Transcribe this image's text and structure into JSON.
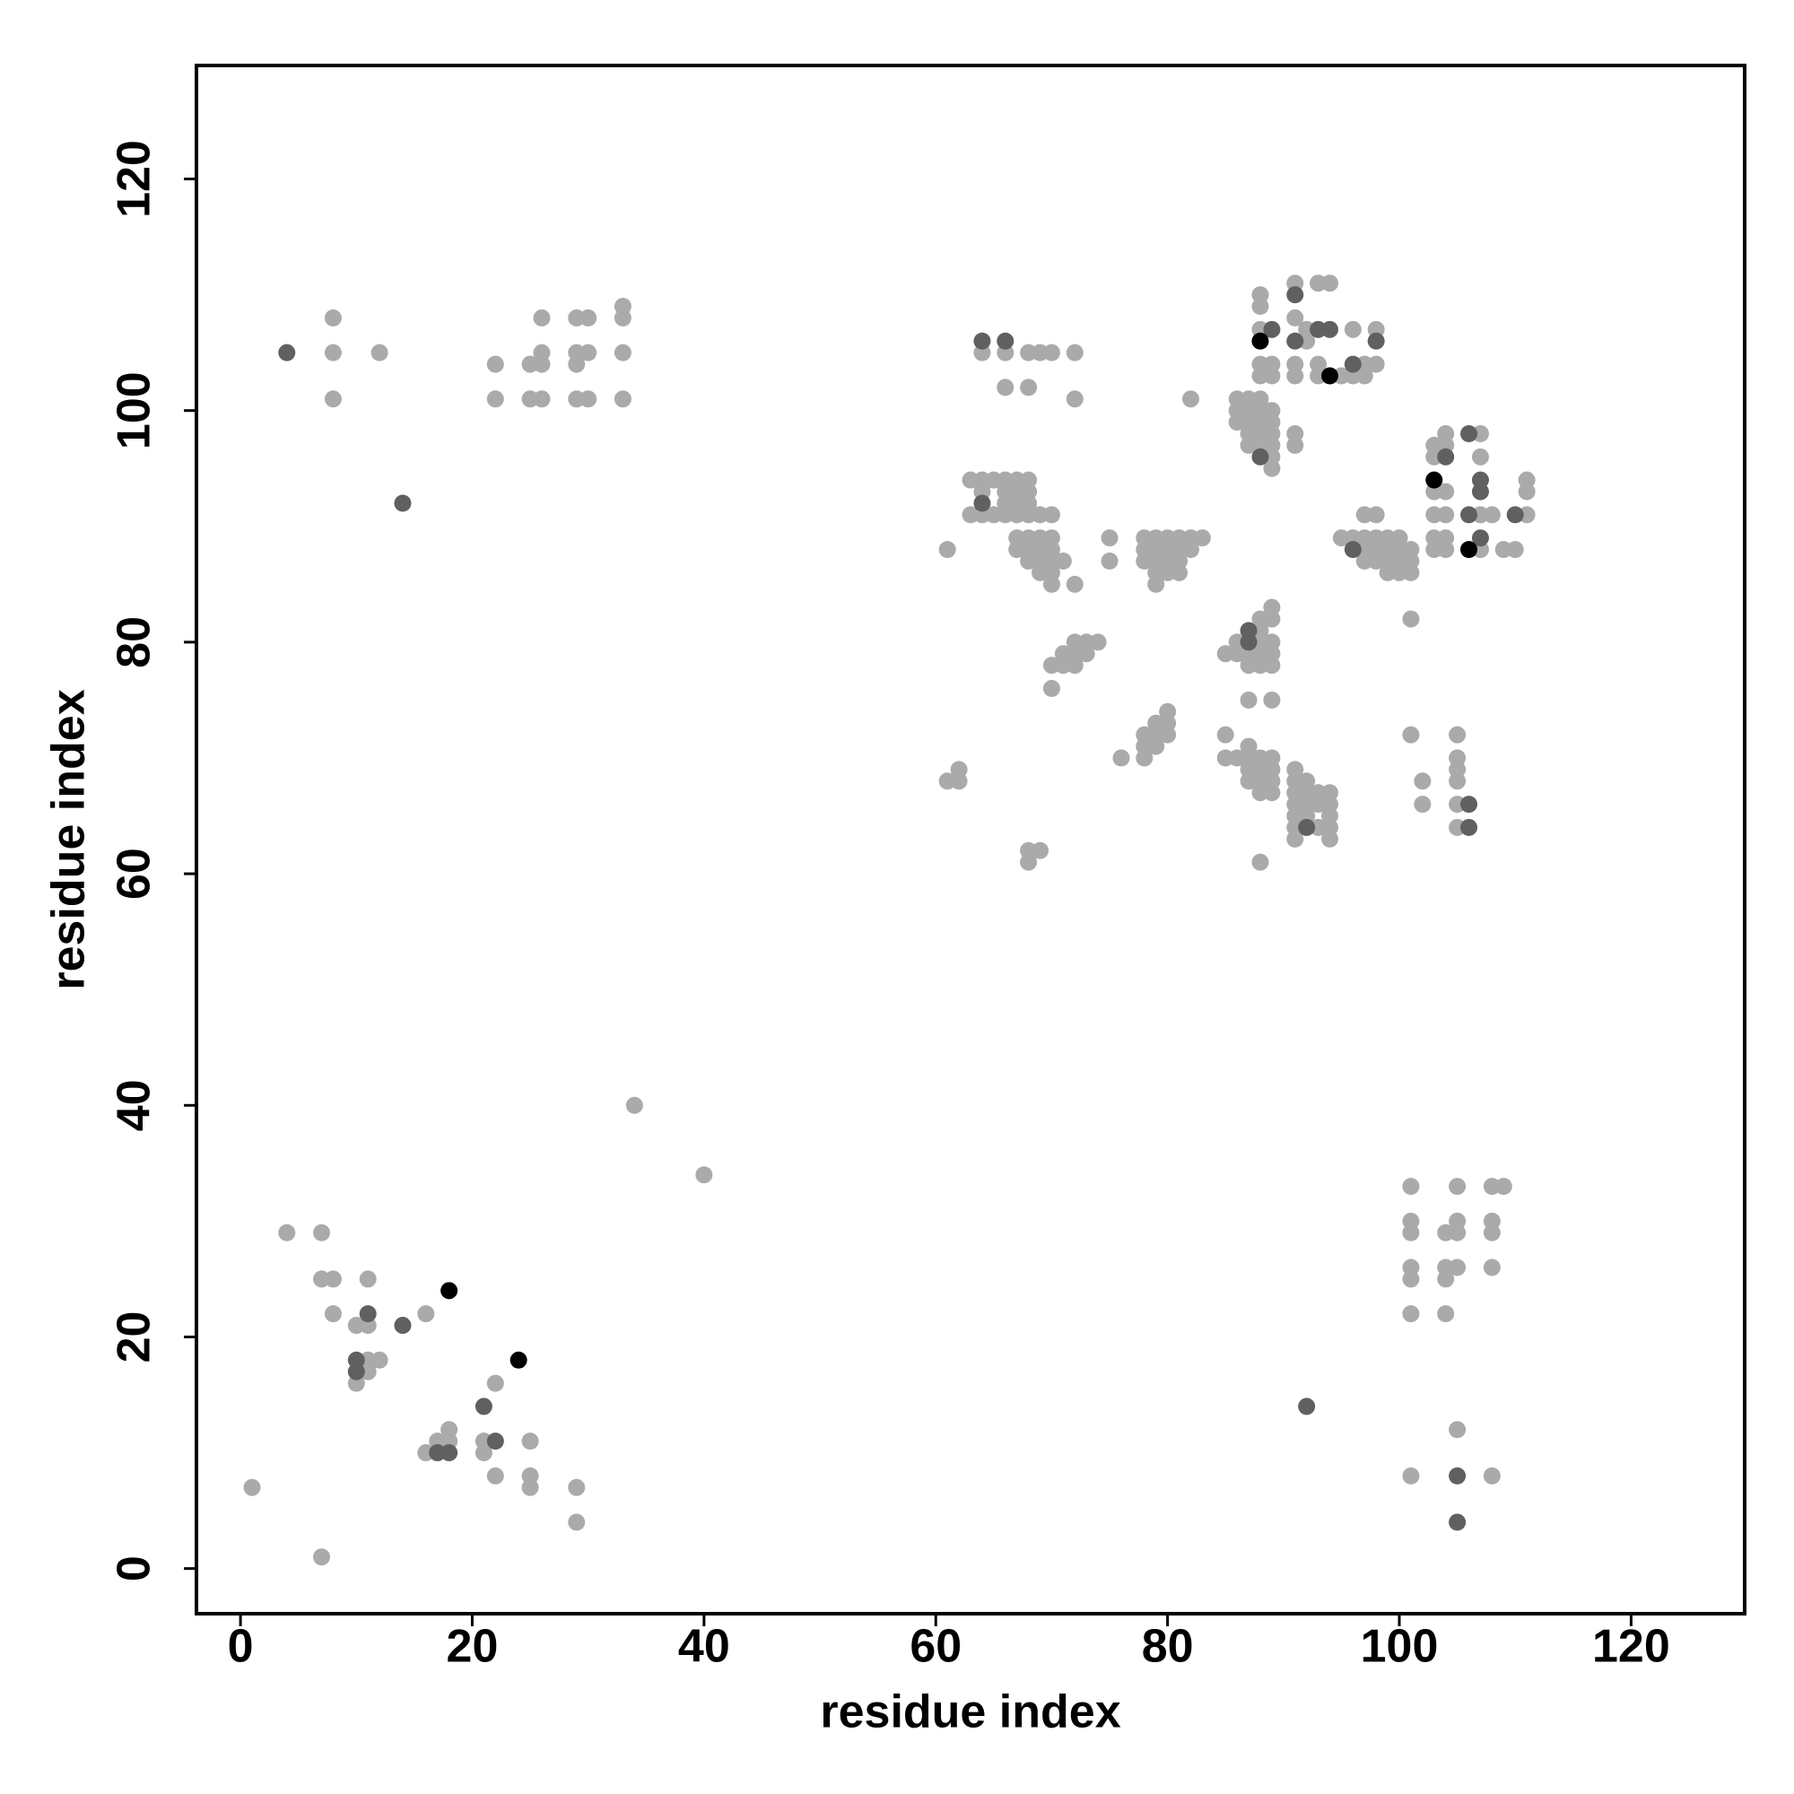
{
  "chart_data": {
    "type": "scatter",
    "xlabel": "residue index",
    "ylabel": "residue index",
    "xlim": [
      -3.8,
      129.8
    ],
    "ylim": [
      -3.9,
      129.8
    ],
    "xticks": [
      0,
      20,
      40,
      60,
      80,
      100,
      120
    ],
    "yticks": [
      0,
      20,
      40,
      60,
      80,
      100,
      120
    ],
    "grid": false,
    "series": [
      {
        "color": "#aaaaaa",
        "x": [
          1,
          7,
          4,
          7,
          7,
          8,
          8,
          11,
          10,
          11,
          16,
          10,
          11,
          12,
          11,
          22,
          16,
          17,
          18,
          18,
          21,
          21,
          22,
          25,
          25,
          25,
          29,
          29,
          34,
          40,
          8,
          8,
          8,
          12,
          22,
          22,
          25,
          25,
          26,
          26,
          26,
          26,
          29,
          29,
          29,
          29,
          30,
          30,
          30,
          33,
          33,
          33,
          33,
          101,
          101,
          101,
          101,
          101,
          101,
          101,
          104,
          104,
          104,
          104,
          105,
          105,
          105,
          105,
          105,
          108,
          108,
          108,
          108,
          108,
          109,
          64,
          66,
          68,
          69,
          70,
          72,
          66,
          68,
          72,
          63,
          64,
          65,
          66,
          67,
          68,
          64,
          66,
          67,
          68,
          66,
          67,
          68,
          63,
          64,
          65,
          66,
          67,
          68,
          69,
          70,
          61,
          67,
          68,
          69,
          70,
          67,
          68,
          69,
          70,
          68,
          69,
          70,
          71,
          69,
          70,
          70,
          72,
          75,
          75,
          70,
          71,
          72,
          71,
          72,
          73,
          72,
          73,
          74,
          70,
          61,
          62,
          62,
          68,
          69,
          68,
          76,
          78,
          78,
          79,
          78,
          79,
          80,
          79,
          80,
          80,
          78,
          79,
          80,
          81,
          82,
          83,
          78,
          79,
          80,
          81,
          82,
          78,
          79,
          80,
          81,
          79,
          80,
          81,
          79,
          82,
          86,
          87,
          88,
          86,
          87,
          88,
          89,
          86,
          87,
          88,
          89,
          87,
          88,
          89,
          87,
          88,
          89,
          89,
          89,
          91,
          91,
          88,
          88,
          91,
          93,
          94,
          91,
          92,
          88,
          92,
          96,
          98,
          88,
          89,
          88,
          89,
          91,
          91,
          93,
          93,
          95,
          97,
          97,
          98,
          96,
          85,
          86,
          88,
          88,
          89,
          89,
          86,
          87,
          88,
          89,
          87,
          88,
          89,
          88,
          89,
          87,
          89,
          85,
          85,
          86,
          87,
          87,
          88,
          89,
          87,
          88,
          89,
          87,
          88,
          89,
          88,
          89,
          88,
          91,
          91,
          92,
          91,
          92,
          93,
          94,
          91,
          92,
          93,
          94,
          91,
          92,
          94,
          91,
          93,
          94,
          91,
          94,
          95,
          96,
          97,
          98,
          99,
          100,
          97,
          98,
          97,
          98,
          99,
          100,
          101,
          97,
          98,
          99,
          100,
          101,
          99,
          100,
          101,
          101,
          101,
          102,
          102,
          103,
          104,
          104,
          103,
          103,
          104,
          103,
          104,
          103,
          104,
          103,
          104,
          107,
          107,
          107,
          108,
          107,
          109,
          110,
          111,
          111,
          111,
          105,
          105,
          105,
          105,
          105,
          105
        ],
        "values": [
          7,
          1,
          29,
          29,
          25,
          25,
          22,
          25,
          21,
          21,
          22,
          16,
          18,
          18,
          17,
          16,
          10,
          11,
          11,
          12,
          11,
          10,
          8,
          11,
          8,
          7,
          7,
          4,
          40,
          34,
          108,
          105,
          101,
          105,
          104,
          101,
          104,
          101,
          104,
          105,
          108,
          101,
          108,
          105,
          104,
          101,
          108,
          105,
          101,
          109,
          108,
          105,
          101,
          33,
          30,
          29,
          26,
          25,
          22,
          8,
          29,
          26,
          25,
          22,
          33,
          30,
          29,
          26,
          12,
          33,
          30,
          29,
          26,
          8,
          33,
          105,
          105,
          105,
          105,
          105,
          105,
          102,
          102,
          101,
          94,
          94,
          94,
          94,
          94,
          94,
          93,
          93,
          93,
          93,
          92,
          92,
          92,
          91,
          91,
          91,
          91,
          91,
          91,
          91,
          91,
          88,
          89,
          89,
          89,
          89,
          88,
          88,
          88,
          88,
          87,
          87,
          87,
          87,
          86,
          86,
          85,
          85,
          89,
          87,
          78,
          78,
          78,
          79,
          79,
          79,
          80,
          80,
          80,
          76,
          68,
          68,
          69,
          62,
          62,
          61,
          70,
          70,
          71,
          71,
          72,
          72,
          72,
          73,
          73,
          74,
          89,
          89,
          89,
          89,
          89,
          89,
          88,
          88,
          88,
          88,
          88,
          87,
          87,
          87,
          87,
          86,
          86,
          86,
          85,
          101,
          101,
          101,
          101,
          100,
          100,
          100,
          100,
          99,
          99,
          99,
          99,
          98,
          98,
          98,
          97,
          97,
          97,
          96,
          95,
          98,
          97,
          110,
          109,
          111,
          111,
          111,
          108,
          107,
          107,
          106,
          107,
          107,
          104,
          104,
          103,
          103,
          104,
          103,
          104,
          103,
          103,
          104,
          103,
          104,
          103,
          79,
          80,
          81,
          82,
          83,
          82,
          79,
          79,
          79,
          79,
          78,
          78,
          78,
          80,
          80,
          75,
          75,
          72,
          70,
          70,
          71,
          70,
          70,
          70,
          69,
          69,
          69,
          68,
          68,
          68,
          67,
          67,
          61,
          69,
          68,
          68,
          67,
          67,
          67,
          67,
          66,
          66,
          66,
          66,
          65,
          65,
          65,
          64,
          64,
          64,
          63,
          63,
          89,
          89,
          89,
          89,
          89,
          89,
          91,
          91,
          88,
          88,
          88,
          88,
          88,
          87,
          87,
          87,
          87,
          87,
          86,
          86,
          86,
          82,
          72,
          68,
          66,
          97,
          98,
          97,
          96,
          93,
          93,
          91,
          91,
          89,
          89,
          88,
          88,
          98,
          96,
          91,
          91,
          88,
          88,
          88,
          91,
          94,
          93,
          72,
          70,
          69,
          68,
          66,
          64
        ]
      },
      {
        "color": "#606060",
        "x": [
          11,
          14,
          10,
          10,
          17,
          18,
          22,
          21,
          4,
          14,
          92,
          105,
          105,
          64,
          66,
          64,
          88,
          91,
          89,
          91,
          93,
          94,
          98,
          96,
          87,
          87,
          92,
          96,
          104,
          106,
          107,
          107,
          106,
          107,
          110,
          106,
          106
        ],
        "values": [
          22,
          21,
          18,
          17,
          10,
          10,
          11,
          14,
          105,
          92,
          14,
          4,
          8,
          106,
          106,
          92,
          96,
          110,
          107,
          106,
          107,
          107,
          106,
          104,
          80,
          81,
          64,
          88,
          96,
          98,
          94,
          93,
          91,
          89,
          91,
          66,
          64
        ]
      },
      {
        "color": "#000000",
        "x": [
          18,
          24,
          88,
          94,
          103,
          106
        ],
        "values": [
          24,
          18,
          106,
          103,
          94,
          88
        ]
      }
    ]
  }
}
